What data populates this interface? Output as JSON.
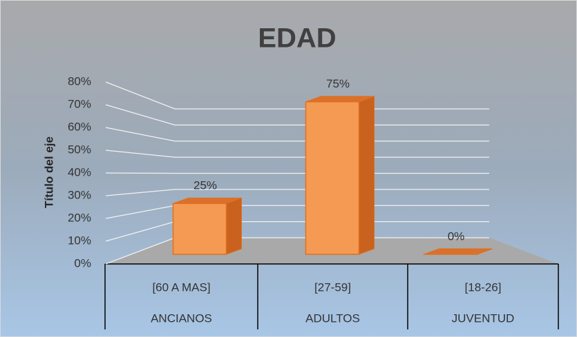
{
  "chart_data": {
    "type": "bar3d",
    "title": "EDAD",
    "y_axis_label": "Título del eje",
    "categories": [
      "[60 A MAS]",
      "[27-59]",
      "[18-26]"
    ],
    "category_groups": [
      "ANCIANOS",
      "ADULTOS",
      "JUVENTUD"
    ],
    "values": [
      25,
      75,
      0
    ],
    "value_labels": [
      "25%",
      "75%",
      "0%"
    ],
    "color": "#f59a52",
    "ylim": [
      0,
      80
    ],
    "yticks": [
      {
        "value": 0,
        "label": "0%"
      },
      {
        "value": 10,
        "label": "10%"
      },
      {
        "value": 20,
        "label": "20%"
      },
      {
        "value": 30,
        "label": "30%"
      },
      {
        "value": 40,
        "label": "40%"
      },
      {
        "value": 50,
        "label": "50%"
      },
      {
        "value": 60,
        "label": "60%"
      },
      {
        "value": 70,
        "label": "70%"
      },
      {
        "value": 80,
        "label": "80%"
      }
    ],
    "grid": true
  }
}
